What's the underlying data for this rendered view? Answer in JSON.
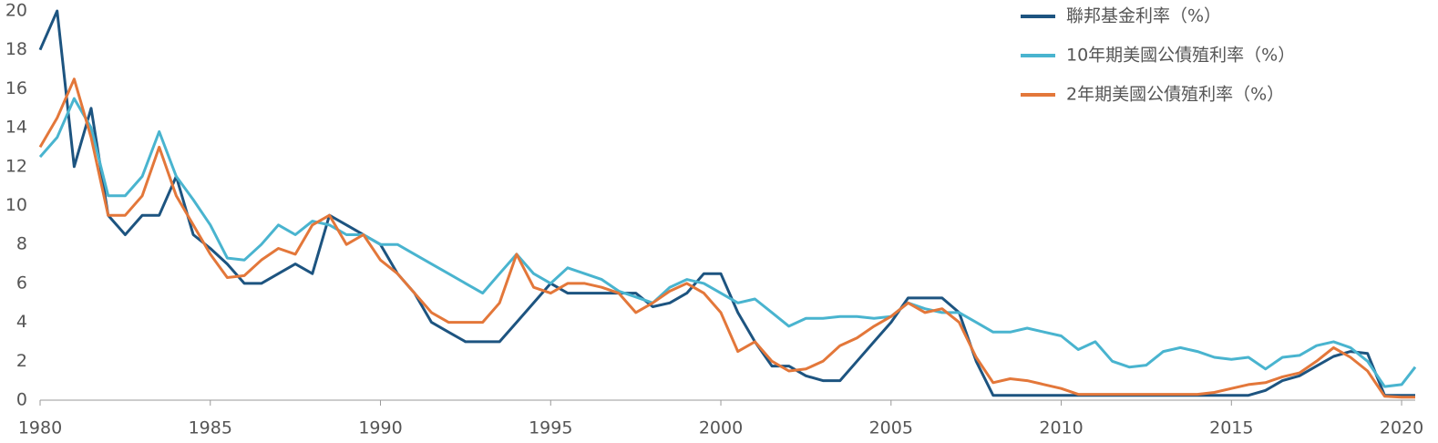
{
  "chart_data": {
    "type": "line",
    "x": [
      1980,
      1980.5,
      1981,
      1981.5,
      1982,
      1982.5,
      1983,
      1983.5,
      1984,
      1984.5,
      1985,
      1985.5,
      1986,
      1986.5,
      1987,
      1987.5,
      1988,
      1988.5,
      1989,
      1989.5,
      1990,
      1990.5,
      1991,
      1991.5,
      1992,
      1992.5,
      1993,
      1993.5,
      1994,
      1994.5,
      1995,
      1995.5,
      1996,
      1996.5,
      1997,
      1997.5,
      1998,
      1998.5,
      1999,
      1999.5,
      2000,
      2000.5,
      2001,
      2001.5,
      2002,
      2002.5,
      2003,
      2003.5,
      2004,
      2004.5,
      2005,
      2005.5,
      2006,
      2006.5,
      2007,
      2007.5,
      2008,
      2008.5,
      2009,
      2009.5,
      2010,
      2010.5,
      2011,
      2011.5,
      2012,
      2012.5,
      2013,
      2013.5,
      2014,
      2014.5,
      2015,
      2015.5,
      2016,
      2016.5,
      2017,
      2017.5,
      2018,
      2018.5,
      2019,
      2019.5,
      2020,
      2020.4
    ],
    "series": [
      {
        "name": "聯邦基金利率（%）",
        "color": "#1d5480",
        "values": [
          18,
          20,
          12,
          15,
          9.5,
          8.5,
          9.5,
          9.5,
          11.5,
          8.5,
          7.8,
          7,
          6,
          6,
          6.5,
          7,
          6.5,
          9.5,
          9,
          8.5,
          8,
          6.5,
          5.5,
          4,
          3.5,
          3,
          3,
          3,
          4,
          5,
          6,
          5.5,
          5.5,
          5.5,
          5.5,
          5.5,
          4.8,
          5,
          5.5,
          6.5,
          6.5,
          4.5,
          3,
          1.75,
          1.75,
          1.25,
          1,
          1,
          2,
          3,
          4,
          5.25,
          5.25,
          5.25,
          4.5,
          2,
          0.25,
          0.25,
          0.25,
          0.25,
          0.25,
          0.25,
          0.25,
          0.25,
          0.25,
          0.25,
          0.25,
          0.25,
          0.25,
          0.25,
          0.25,
          0.25,
          0.5,
          1,
          1.25,
          1.75,
          2.25,
          2.5,
          2.4,
          0.25,
          0.25,
          0.25
        ]
      },
      {
        "name": "10年期美國公債殖利率（%）",
        "color": "#49b4cf",
        "values": [
          12.5,
          13.5,
          15.5,
          14,
          10.5,
          10.5,
          11.5,
          13.8,
          11.5,
          10.3,
          9,
          7.3,
          7.2,
          8,
          9,
          8.5,
          9.2,
          9,
          8.5,
          8.5,
          8,
          8,
          7.5,
          7,
          6.5,
          6,
          5.5,
          6.5,
          7.5,
          6.5,
          6,
          6.8,
          6.5,
          6.2,
          5.6,
          5.3,
          5,
          5.8,
          6.2,
          6,
          5.5,
          5,
          5.2,
          4.5,
          3.8,
          4.2,
          4.2,
          4.3,
          4.3,
          4.2,
          4.3,
          5,
          4.7,
          4.5,
          4.5,
          4,
          3.5,
          3.5,
          3.7,
          3.5,
          3.3,
          2.6,
          3,
          2,
          1.7,
          1.8,
          2.5,
          2.7,
          2.5,
          2.2,
          2.1,
          2.2,
          1.6,
          2.2,
          2.3,
          2.8,
          3,
          2.7,
          2,
          0.7,
          0.8,
          1.7
        ]
      },
      {
        "name": "2年期美國公債殖利率（%）",
        "color": "#e3773a",
        "values": [
          13,
          14.5,
          16.5,
          13.5,
          9.5,
          9.5,
          10.5,
          13,
          10.5,
          9,
          7.5,
          6.3,
          6.4,
          7.2,
          7.8,
          7.5,
          9,
          9.5,
          8,
          8.5,
          7.2,
          6.5,
          5.5,
          4.5,
          4,
          4,
          4,
          5,
          7.5,
          5.8,
          5.5,
          6,
          6,
          5.8,
          5.5,
          4.5,
          5,
          5.6,
          6,
          5.5,
          4.5,
          2.5,
          3,
          2,
          1.5,
          1.6,
          2,
          2.8,
          3.2,
          3.8,
          4.3,
          5,
          4.5,
          4.7,
          4,
          2.2,
          0.9,
          1.1,
          1,
          0.8,
          0.6,
          0.3,
          0.3,
          0.3,
          0.3,
          0.3,
          0.3,
          0.3,
          0.3,
          0.4,
          0.6,
          0.8,
          0.9,
          1.2,
          1.4,
          2,
          2.7,
          2.2,
          1.5,
          0.2,
          0.15,
          0.15
        ]
      }
    ],
    "xlim": [
      1980,
      2020.4
    ],
    "xticks": [
      1980,
      1985,
      1990,
      1995,
      2000,
      2005,
      2010,
      2015,
      2020
    ],
    "ylim": [
      0,
      20
    ],
    "yticks": [
      0,
      2,
      4,
      6,
      8,
      10,
      12,
      14,
      16,
      18,
      20
    ],
    "grid": false,
    "legend": "top-right"
  }
}
